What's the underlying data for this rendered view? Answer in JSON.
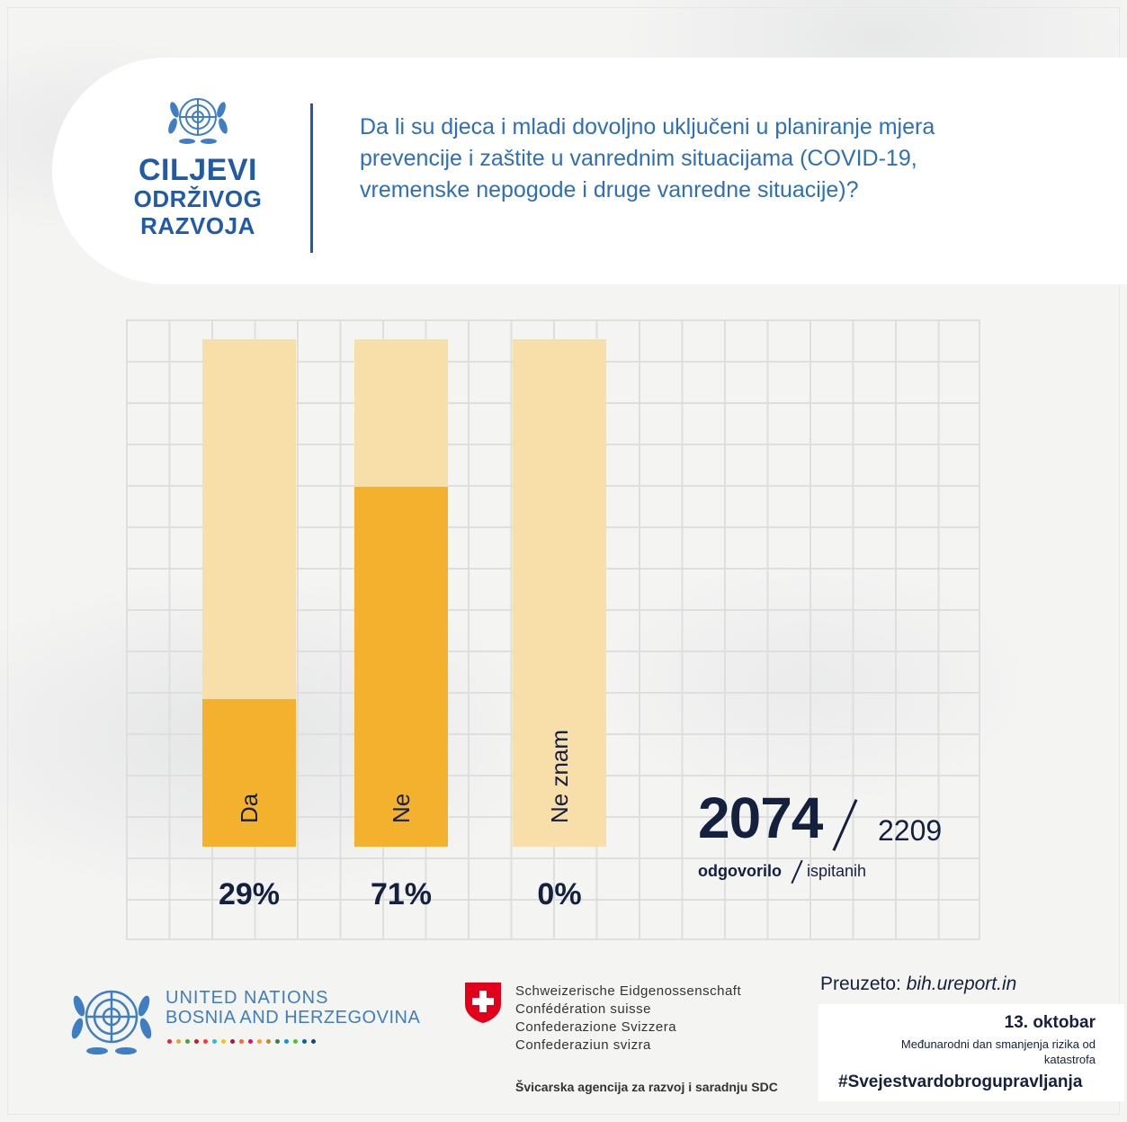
{
  "header": {
    "logo_lines": [
      "CILJEVI",
      "ODRŽIVOG",
      "RAZVOJA"
    ],
    "question": "Da li su djeca i mladi dovoljno uključeni u planiranje mjera prevencije i zaštite u vanrednim situacijama (COVID-19, vremenske nepogode i druge vanredne situacije)?"
  },
  "chart_data": {
    "type": "bar",
    "orientation": "vertical",
    "categories": [
      "Da",
      "Ne",
      "Ne znam"
    ],
    "values": [
      29,
      71,
      0
    ],
    "value_labels": [
      "29%",
      "71%",
      "0%"
    ],
    "ylim": [
      0,
      100
    ],
    "title": "",
    "xlabel": "",
    "ylabel": "",
    "colors": {
      "fill": "#f4b12e",
      "track": "#f8dea8"
    }
  },
  "counts": {
    "answered": "2074",
    "total": "2209",
    "answered_label": "odgovorilo",
    "total_label": "ispitanih"
  },
  "footer": {
    "un_title": "UNITED NATIONS",
    "un_subtitle": "BOSNIA AND HERZEGOVINA",
    "swiss_lines": [
      "Schweizerische Eidgenossenschaft",
      "Confédération suisse",
      "Confederazione Svizzera",
      "Confederaziun svizra"
    ],
    "swiss_agency": "Švicarska agencija za razvoj i saradnju SDC",
    "source_prefix": "Preuzeto:",
    "source_url": "bih.ureport.in",
    "date": "13. oktobar",
    "date_desc": "Međunarodni dan smanjenja rizika od katastrofa",
    "hashtag": "#Svejestvardobrogupravljanja"
  }
}
